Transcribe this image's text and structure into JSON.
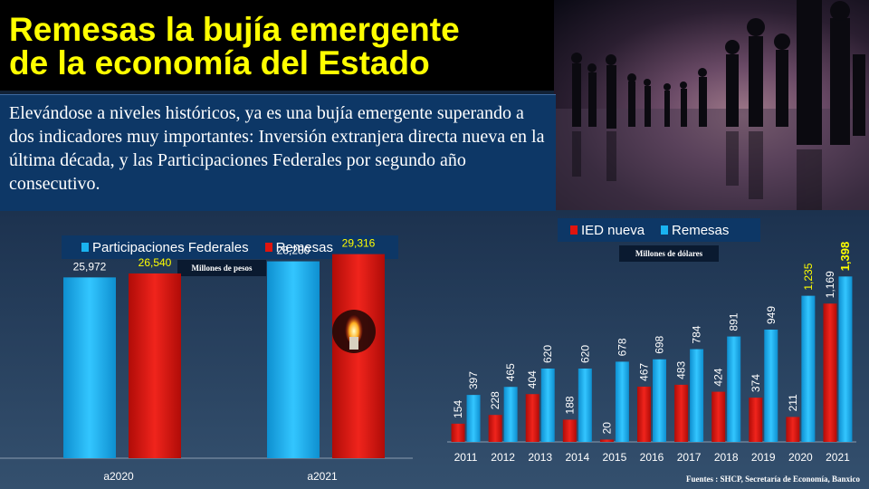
{
  "header": {
    "title": "Remesas la bujía emergente\nde la economía del Estado",
    "subtitle": "Elevándose a niveles históricos, ya es una bujía emergente superando a dos indicadores muy importantes: Inversión extranjera directa nueva en la última década, y las Participaciones Federales por segundo año consecutivo."
  },
  "source": "Fuentes : SHCP, Secretaría de Economía, Banxico",
  "colors": {
    "blue": "#1ab3f0",
    "red": "#e0140e",
    "highlight": "#ffff00",
    "label": "#ffffff"
  },
  "chart_data": [
    {
      "type": "bar",
      "title": "",
      "units": "Millones de pesos",
      "categories": [
        "a2020",
        "a2021"
      ],
      "series": [
        {
          "name": "Participaciones Federales",
          "values": [
            25972,
            28280
          ]
        },
        {
          "name": "Remesas",
          "values": [
            26540,
            29316
          ]
        }
      ],
      "value_labels": [
        [
          "25,972",
          "28,280"
        ],
        [
          "26,540",
          "29,316"
        ]
      ],
      "ylim": [
        0,
        32000
      ],
      "legend": "top"
    },
    {
      "type": "bar",
      "title": "",
      "units": "Millones de dólares",
      "categories": [
        "2011",
        "2012",
        "2013",
        "2014",
        "2015",
        "2016",
        "2017",
        "2018",
        "2019",
        "2020",
        "2021"
      ],
      "series": [
        {
          "name": "IED nueva",
          "values": [
            154,
            228,
            404,
            188,
            20,
            467,
            483,
            424,
            374,
            211,
            1169
          ]
        },
        {
          "name": "Remesas",
          "values": [
            397,
            465,
            620,
            620,
            678,
            698,
            784,
            891,
            949,
            1235,
            1398
          ]
        }
      ],
      "value_labels": [
        [
          "154",
          "228",
          "404",
          "188",
          "20",
          "467",
          "483",
          "424",
          "374",
          "211",
          "1,169"
        ],
        [
          "397",
          "465",
          "620",
          "620",
          "678",
          "698",
          "784",
          "891",
          "949",
          "1,235",
          "1,398"
        ]
      ],
      "ylim": [
        0,
        1500
      ],
      "legend": "top"
    }
  ]
}
